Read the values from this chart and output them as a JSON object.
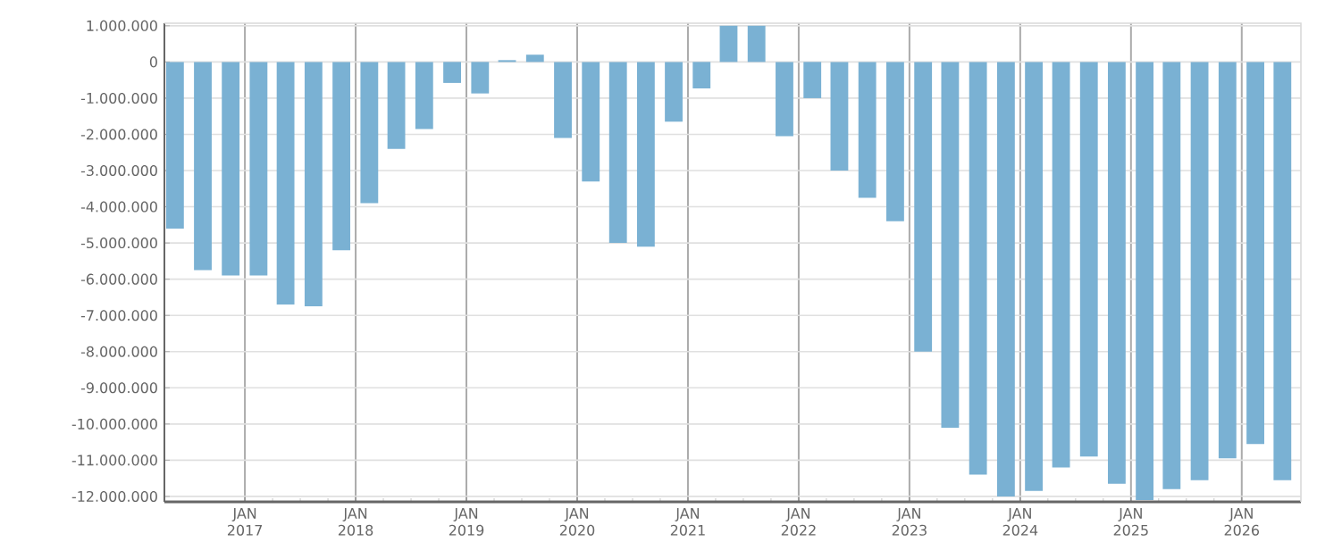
{
  "chart_data": {
    "type": "bar",
    "color": "#7ab1d3",
    "grid": true,
    "x": [
      "2016-05-15",
      "2016-08-15",
      "2016-11-15",
      "2017-02-15",
      "2017-05-15",
      "2017-08-15",
      "2017-11-15",
      "2018-02-15",
      "2018-05-15",
      "2018-08-15",
      "2018-11-15",
      "2019-02-15",
      "2019-05-15",
      "2019-08-15",
      "2019-11-15",
      "2020-02-15",
      "2020-05-15",
      "2020-08-15",
      "2020-11-15",
      "2021-02-15",
      "2021-05-15",
      "2021-08-15",
      "2021-11-15",
      "2022-02-15",
      "2022-05-15",
      "2022-08-15",
      "2022-11-15",
      "2023-02-15",
      "2023-05-15",
      "2023-08-15",
      "2023-11-15",
      "2024-02-15",
      "2024-05-15",
      "2024-08-15",
      "2024-11-15",
      "2025-02-15",
      "2025-05-15",
      "2025-08-15",
      "2025-11-15",
      "2026-02-15",
      "2026-05-15"
    ],
    "values": [
      -4600000,
      -5750000,
      -5900000,
      -5900000,
      -6700000,
      -6750000,
      -5200000,
      -3900000,
      -2400000,
      -1850000,
      -580000,
      -870000,
      50000,
      200000,
      -2100000,
      -3300000,
      -5000000,
      -5100000,
      -1650000,
      -730000,
      1000000,
      1000000,
      -2050000,
      -1000000,
      -3000000,
      -3750000,
      -4400000,
      -8000000,
      -10100000,
      -11400000,
      -12000000,
      -11850000,
      -11200000,
      -10900000,
      -11650000,
      -12100000,
      -11800000,
      -11550000,
      -10950000,
      -10550000,
      -11550000
    ],
    "xlim": [
      "2016-04-10",
      "2026-07-15"
    ],
    "xticks": [
      {
        "value": "2017-01-01",
        "label": "JAN 2017"
      },
      {
        "value": "2018-01-01",
        "label": "JAN 2018"
      },
      {
        "value": "2019-01-01",
        "label": "JAN 2019"
      },
      {
        "value": "2020-01-01",
        "label": "JAN 2020"
      },
      {
        "value": "2021-01-01",
        "label": "JAN 2021"
      },
      {
        "value": "2022-01-01",
        "label": "JAN 2022"
      },
      {
        "value": "2023-01-01",
        "label": "JAN 2023"
      },
      {
        "value": "2024-01-01",
        "label": "JAN 2024"
      },
      {
        "value": "2025-01-01",
        "label": "JAN 2025"
      },
      {
        "value": "2026-01-01",
        "label": "JAN 2026"
      }
    ],
    "ylim": [
      -12150000,
      1070000
    ],
    "yticks": [
      {
        "value": 1000000,
        "label": "1.000.000"
      },
      0,
      {
        "value": -1000000,
        "label": "-1.000.000"
      },
      {
        "value": -2000000,
        "label": "-2.000.000"
      },
      {
        "value": -3000000,
        "label": "-3.000.000"
      },
      {
        "value": -4000000,
        "label": "-4.000.000"
      },
      {
        "value": -5000000,
        "label": "-5.000.000"
      },
      {
        "value": -6000000,
        "label": "-6.000.000"
      },
      {
        "value": -7000000,
        "label": "-7.000.000"
      },
      {
        "value": -8000000,
        "label": "-8.000.000"
      },
      {
        "value": -9000000,
        "label": "-9.000.000"
      },
      {
        "value": -10000000,
        "label": "-10.000.000"
      },
      {
        "value": -11000000,
        "label": "-11.000.000"
      },
      {
        "value": -12000000,
        "label": "-12.000.000"
      }
    ]
  }
}
